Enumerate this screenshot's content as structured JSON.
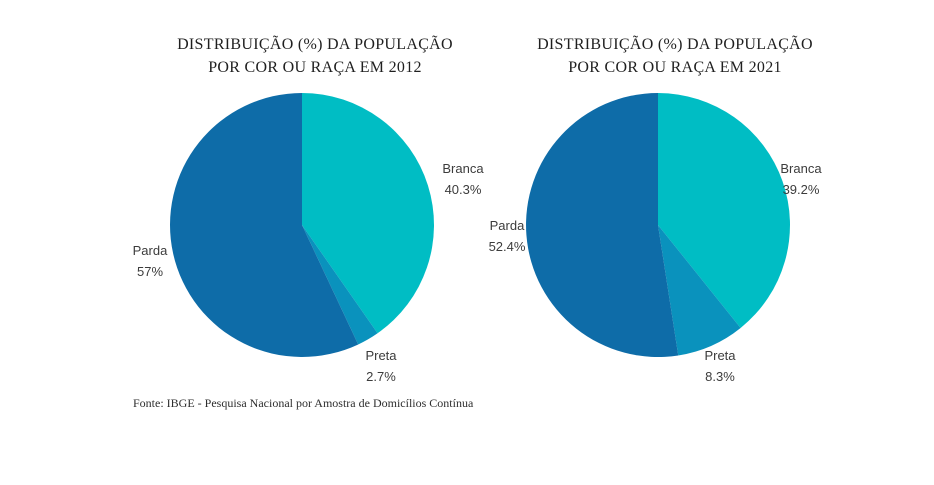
{
  "footer": {
    "text": "Fonte: IBGE - Pesquisa Nacional por Amostra de Domicílios Contínua"
  },
  "chart_data": [
    {
      "type": "pie",
      "title": "DISTRIBUIÇÃO (%) DA POPULAÇÃO POR COR OU RAÇA EM 2012",
      "title_line1": "DISTRIBUIÇÃO (%) DA POPULAÇÃO",
      "title_line2": "POR COR OU RAÇA EM 2012",
      "start_angle_deg": 0,
      "direction": "clockwise",
      "legend_position": "none",
      "slices": [
        {
          "label": "Branca",
          "value": 40.3,
          "pct_text": "40.3%",
          "color": "#00BDC4"
        },
        {
          "label": "Preta",
          "value": 2.7,
          "pct_text": "2.7%",
          "color": "#0A92BD"
        },
        {
          "label": "Parda",
          "value": 57,
          "pct_text": "57%",
          "color": "#0E6CA8"
        }
      ]
    },
    {
      "type": "pie",
      "title": "DISTRIBUIÇÃO (%) DA POPULAÇÃO POR COR OU RAÇA EM 2021",
      "title_line1": "DISTRIBUIÇÃO (%) DA POPULAÇÃO",
      "title_line2": "POR COR OU RAÇA EM 2021",
      "start_angle_deg": 0,
      "direction": "clockwise",
      "legend_position": "none",
      "slices": [
        {
          "label": "Branca",
          "value": 39.2,
          "pct_text": "39.2%",
          "color": "#00BDC4"
        },
        {
          "label": "Preta",
          "value": 8.3,
          "pct_text": "8.3%",
          "color": "#0A92BD"
        },
        {
          "label": "Parda",
          "value": 52.4,
          "pct_text": "52.4%",
          "color": "#0E6CA8"
        }
      ]
    }
  ]
}
